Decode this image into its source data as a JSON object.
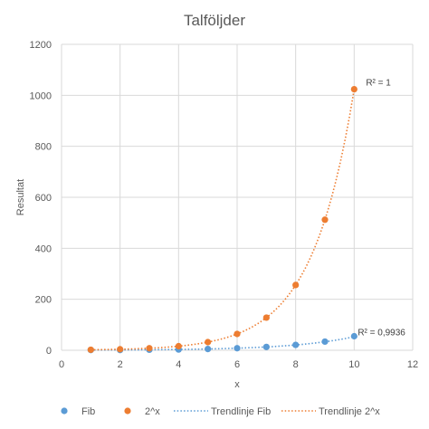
{
  "chart_data": {
    "type": "scatter",
    "title": "Talföljder",
    "xlabel": "x",
    "ylabel": "Resultat",
    "xlim": [
      0,
      12
    ],
    "ylim": [
      0,
      1200
    ],
    "xticks": [
      "0",
      "2",
      "4",
      "6",
      "8",
      "10",
      "12"
    ],
    "yticks": [
      "0",
      "200",
      "400",
      "600",
      "800",
      "1000",
      "1200"
    ],
    "grid": true,
    "legend_position": "bottom",
    "series": [
      {
        "name": "Fib",
        "color": "#5B9BD5",
        "x": [
          1,
          2,
          3,
          4,
          5,
          6,
          7,
          8,
          9,
          10
        ],
        "y": [
          1,
          1,
          2,
          3,
          5,
          8,
          13,
          21,
          34,
          55
        ]
      },
      {
        "name": "2^x",
        "color": "#ED7D31",
        "x": [
          1,
          2,
          3,
          4,
          5,
          6,
          7,
          8,
          9,
          10
        ],
        "y": [
          2,
          4,
          8,
          16,
          32,
          64,
          128,
          256,
          512,
          1024
        ]
      }
    ],
    "trendlines": [
      {
        "name": "Trendlinje Fib",
        "color": "#5B9BD5",
        "type": "exponential",
        "r2_label": "R² = 0,9936"
      },
      {
        "name": "Trendlinje 2^x",
        "color": "#ED7D31",
        "type": "exponential",
        "r2_label": "R² = 1"
      }
    ]
  }
}
